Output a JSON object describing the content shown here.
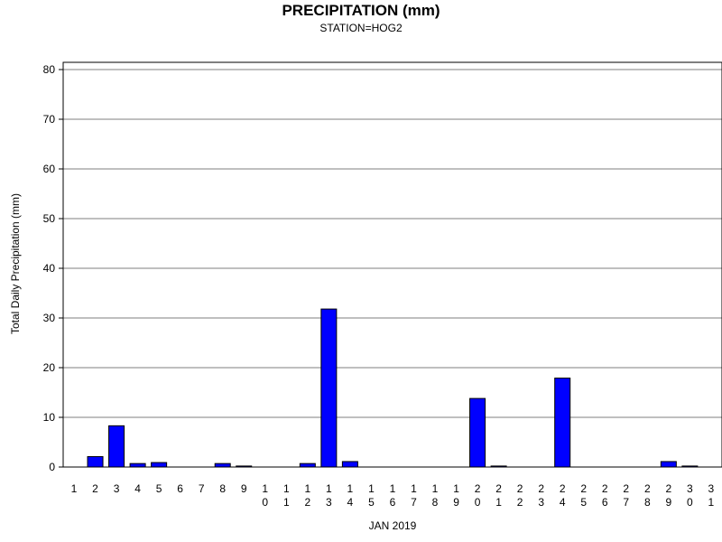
{
  "chart_data": {
    "type": "bar",
    "title": "PRECIPITATION (mm)",
    "subtitle": "STATION=HOG2",
    "xlabel": "JAN 2019",
    "ylabel": "Total Daily Precipitation (mm)",
    "ylim": [
      0,
      80
    ],
    "yticks": [
      0,
      10,
      20,
      30,
      40,
      50,
      60,
      70,
      80
    ],
    "grid": true,
    "bar_color": "#0000ff",
    "categories": [
      "1",
      "2",
      "3",
      "4",
      "5",
      "6",
      "7",
      "8",
      "9",
      "10",
      "11",
      "12",
      "13",
      "14",
      "15",
      "16",
      "17",
      "18",
      "19",
      "20",
      "21",
      "22",
      "23",
      "24",
      "25",
      "26",
      "27",
      "28",
      "29",
      "30",
      "31"
    ],
    "values": [
      0,
      2.1,
      8.3,
      0.7,
      0.9,
      0,
      0,
      0.7,
      0.2,
      0,
      0,
      0.7,
      31.8,
      1.1,
      0,
      0,
      0,
      0,
      0,
      13.8,
      0.2,
      0,
      0,
      17.9,
      0,
      0,
      0,
      0,
      1.1,
      0.2,
      0
    ]
  }
}
